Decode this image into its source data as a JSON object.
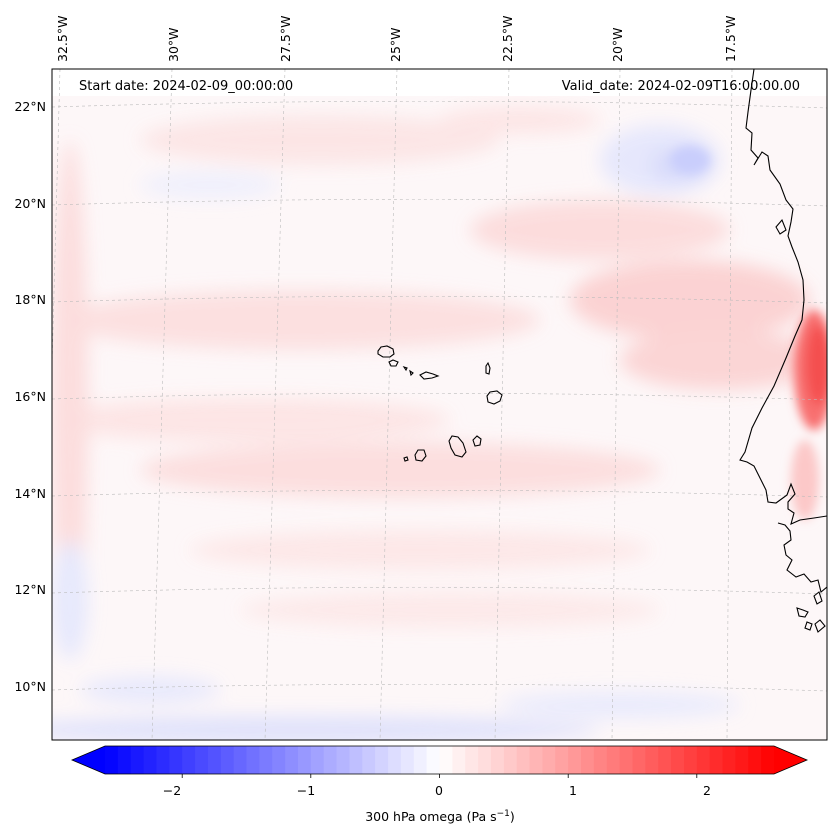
{
  "header": {
    "start_date": "Start date: 2024-02-09_00:00:00",
    "valid_date": "Valid_date: 2024-02-09T16:00:00.00"
  },
  "map": {
    "lon_labels": [
      "32.5°W",
      "30°W",
      "27.5°W",
      "25°W",
      "22.5°W",
      "20°W",
      "17.5°W"
    ],
    "lat_labels": [
      "22°N",
      "20°N",
      "18°N",
      "16°N",
      "14°N",
      "12°N",
      "10°N"
    ],
    "field": "300 hPa omega",
    "colors": {
      "negative": "#0000ff",
      "zero": "#ffffff",
      "positive": "#ff0000",
      "coastline": "#000000"
    }
  },
  "colorbar": {
    "ticks": [
      "−2",
      "−1",
      "0",
      "1",
      "2"
    ],
    "label_main": "300 hPa omega (Pa s",
    "label_sup": "−1",
    "label_end": ")",
    "range": [
      -2.6,
      2.6
    ],
    "tick_values": [
      -2,
      -1,
      0,
      1,
      2
    ]
  }
}
